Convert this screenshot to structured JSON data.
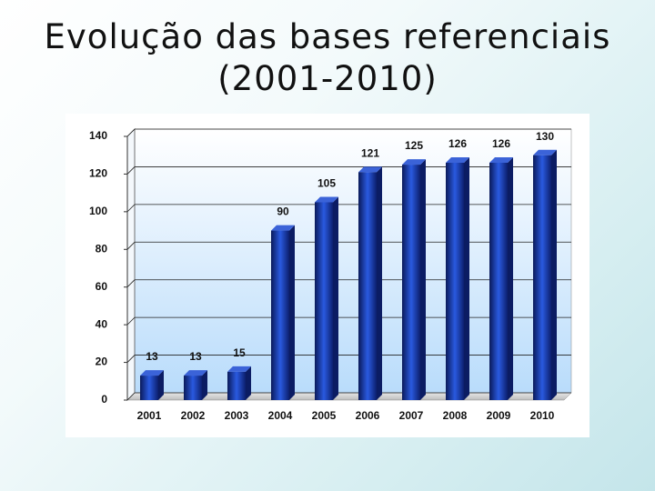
{
  "chart_data": {
    "type": "bar",
    "title": "Evolução das bases referenciais (2001-2010)",
    "categories": [
      "2001",
      "2002",
      "2003",
      "2004",
      "2005",
      "2006",
      "2007",
      "2008",
      "2009",
      "2010"
    ],
    "values": [
      13,
      13,
      15,
      90,
      105,
      121,
      125,
      126,
      126,
      130
    ],
    "color": "#2a5ae0",
    "ylim": [
      0,
      140
    ],
    "yticks": [
      0,
      20,
      40,
      60,
      80,
      100,
      120,
      140
    ],
    "grid": true
  }
}
